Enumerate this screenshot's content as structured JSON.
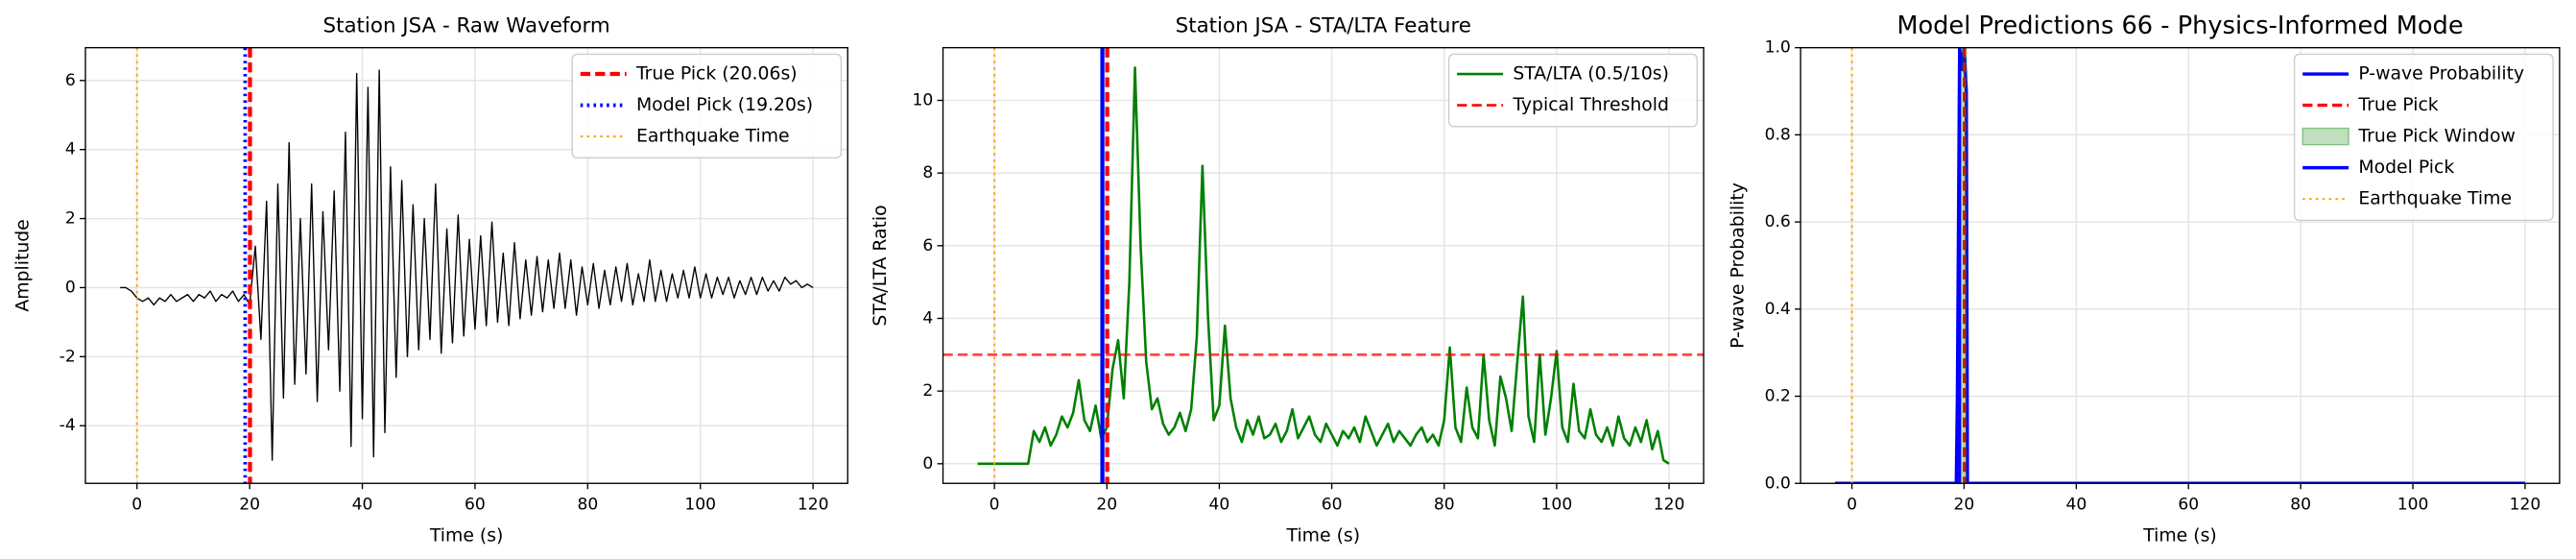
{
  "chart_data": [
    {
      "type": "line",
      "title": "Station JSA - Raw Waveform",
      "xlabel": "Time (s)",
      "ylabel": "Amplitude",
      "xlim": [
        -9.15,
        126.15
      ],
      "ylim": [
        -5.67,
        6.95
      ],
      "xticks": [
        0,
        20,
        40,
        60,
        80,
        100,
        120
      ],
      "yticks": [
        -4,
        -2,
        0,
        2,
        4,
        6
      ],
      "grid": true,
      "legend": "upper right",
      "x": [
        -3,
        -2,
        -1,
        0,
        1,
        2,
        3,
        4,
        5,
        6,
        7,
        8,
        9,
        10,
        11,
        12,
        13,
        14,
        15,
        16,
        17,
        18,
        19,
        20,
        21,
        22,
        23,
        24,
        25,
        26,
        27,
        28,
        29,
        30,
        31,
        32,
        33,
        34,
        35,
        36,
        37,
        38,
        39,
        40,
        41,
        42,
        43,
        44,
        45,
        46,
        47,
        48,
        49,
        50,
        51,
        52,
        53,
        54,
        55,
        56,
        57,
        58,
        59,
        60,
        61,
        62,
        63,
        64,
        65,
        66,
        67,
        68,
        69,
        70,
        71,
        72,
        73,
        74,
        75,
        76,
        77,
        78,
        79,
        80,
        81,
        82,
        83,
        84,
        85,
        86,
        87,
        88,
        89,
        90,
        91,
        92,
        93,
        94,
        95,
        96,
        97,
        98,
        99,
        100,
        101,
        102,
        103,
        104,
        105,
        106,
        107,
        108,
        109,
        110,
        111,
        112,
        113,
        114,
        115,
        116,
        117,
        118,
        119,
        120
      ],
      "layers": [
        {
          "kind": "line",
          "color": "#000000",
          "linewidth": 0.8,
          "dash": "solid",
          "values": [
            0,
            0,
            -0.1,
            -0.3,
            -0.4,
            -0.3,
            -0.5,
            -0.3,
            -0.4,
            -0.2,
            -0.4,
            -0.3,
            -0.2,
            -0.4,
            -0.2,
            -0.3,
            -0.1,
            -0.4,
            -0.2,
            -0.3,
            -0.1,
            -0.4,
            -0.2,
            -0.5,
            1.2,
            -1.5,
            2.5,
            -5.0,
            3.0,
            -3.2,
            4.2,
            -2.8,
            2.0,
            -2.5,
            3.0,
            -3.3,
            2.2,
            -1.8,
            2.8,
            -3.0,
            4.5,
            -4.6,
            6.2,
            -3.8,
            5.8,
            -4.9,
            6.3,
            -4.2,
            3.5,
            -2.6,
            3.1,
            -2.0,
            2.4,
            -1.8,
            2.0,
            -1.5,
            3.0,
            -1.9,
            1.7,
            -1.6,
            2.1,
            -1.4,
            1.4,
            -1.2,
            1.5,
            -1.1,
            1.9,
            -1.0,
            1.0,
            -1.1,
            1.3,
            -0.9,
            0.8,
            -0.8,
            0.9,
            -0.7,
            0.8,
            -0.6,
            1.0,
            -0.6,
            0.8,
            -0.8,
            0.6,
            -0.5,
            0.7,
            -0.6,
            0.5,
            -0.5,
            0.6,
            -0.4,
            0.7,
            -0.5,
            0.4,
            -0.4,
            0.8,
            -0.4,
            0.5,
            -0.4,
            0.4,
            -0.3,
            0.5,
            -0.3,
            0.6,
            -0.3,
            0.4,
            -0.3,
            0.3,
            -0.2,
            0.3,
            -0.3,
            0.2,
            -0.2,
            0.3,
            -0.2,
            0.3,
            -0.1,
            0.2,
            -0.1,
            0.3,
            0.1,
            0.2,
            0.0,
            0.1,
            0.0
          ]
        },
        {
          "kind": "vline",
          "name": "True Pick (20.06s)",
          "color": "#ff0000",
          "linewidth": 2.5,
          "dash": "dashed",
          "x": 20.06
        },
        {
          "kind": "vline",
          "name": "Model Pick (19.20s)",
          "color": "#0000ff",
          "linewidth": 2.2,
          "dash": "dotted",
          "x": 19.2
        },
        {
          "kind": "vline",
          "name": "Earthquake Time",
          "color": "#ffa500",
          "linewidth": 1.2,
          "dash": "dotted",
          "x": 0
        }
      ]
    },
    {
      "type": "line",
      "title": "Station JSA - STA/LTA Feature",
      "xlabel": "Time (s)",
      "ylabel": "STA/LTA Ratio",
      "xlim": [
        -9.15,
        126.15
      ],
      "ylim": [
        -0.54,
        11.45
      ],
      "xticks": [
        0,
        20,
        40,
        60,
        80,
        100,
        120
      ],
      "yticks": [
        0,
        2,
        4,
        6,
        8,
        10
      ],
      "grid": true,
      "legend": "upper right",
      "x": [
        -3,
        -2,
        -1,
        0,
        1,
        2,
        3,
        4,
        5,
        6,
        7,
        8,
        9,
        10,
        11,
        12,
        13,
        14,
        15,
        16,
        17,
        18,
        19,
        20,
        21,
        22,
        23,
        24,
        25,
        26,
        27,
        28,
        29,
        30,
        31,
        32,
        33,
        34,
        35,
        36,
        37,
        38,
        39,
        40,
        41,
        42,
        43,
        44,
        45,
        46,
        47,
        48,
        49,
        50,
        51,
        52,
        53,
        54,
        55,
        56,
        57,
        58,
        59,
        60,
        61,
        62,
        63,
        64,
        65,
        66,
        67,
        68,
        69,
        70,
        71,
        72,
        73,
        74,
        75,
        76,
        77,
        78,
        79,
        80,
        81,
        82,
        83,
        84,
        85,
        86,
        87,
        88,
        89,
        90,
        91,
        92,
        93,
        94,
        95,
        96,
        97,
        98,
        99,
        100,
        101,
        102,
        103,
        104,
        105,
        106,
        107,
        108,
        109,
        110,
        111,
        112,
        113,
        114,
        115,
        116,
        117,
        118,
        119,
        120
      ],
      "layers": [
        {
          "kind": "line",
          "name": "STA/LTA (0.5/10s)",
          "color": "#008000",
          "linewidth": 1.5,
          "dash": "solid",
          "values": [
            0,
            0,
            0,
            0,
            0,
            0,
            0,
            0,
            0,
            0,
            0.9,
            0.6,
            1.0,
            0.5,
            0.8,
            1.3,
            1.0,
            1.4,
            2.3,
            1.2,
            0.9,
            1.6,
            0.7,
            1.0,
            2.6,
            3.4,
            1.8,
            5.0,
            10.9,
            6.0,
            2.8,
            1.5,
            1.8,
            1.1,
            0.8,
            1.0,
            1.4,
            0.9,
            1.5,
            3.5,
            8.2,
            4.0,
            1.2,
            1.6,
            3.8,
            1.8,
            1.0,
            0.6,
            1.2,
            0.8,
            1.3,
            0.7,
            0.8,
            1.1,
            0.6,
            0.9,
            1.5,
            0.7,
            1.0,
            1.3,
            0.8,
            0.6,
            1.1,
            0.8,
            0.5,
            0.9,
            0.7,
            1.0,
            0.6,
            1.3,
            0.9,
            0.5,
            0.8,
            1.1,
            0.6,
            0.9,
            0.7,
            0.5,
            0.8,
            1.0,
            0.6,
            0.8,
            0.5,
            1.2,
            3.2,
            1.0,
            0.6,
            2.1,
            1.0,
            0.7,
            3.0,
            1.2,
            0.5,
            2.4,
            1.8,
            0.9,
            2.8,
            4.6,
            1.3,
            0.6,
            3.0,
            0.8,
            1.8,
            3.1,
            1.0,
            0.6,
            2.2,
            0.9,
            0.7,
            1.5,
            0.8,
            0.6,
            1.0,
            0.5,
            1.3,
            0.7,
            0.5,
            1.0,
            0.6,
            1.2,
            0.4,
            0.9,
            0.1,
            0.0
          ]
        },
        {
          "kind": "hline",
          "name": "Typical Threshold",
          "color": "#ff0000",
          "linewidth": 1.5,
          "dash": "dashed",
          "y": 3
        },
        {
          "kind": "vline",
          "color": "#0000ff",
          "linewidth": 2.5,
          "dash": "solid",
          "x": 19.2
        },
        {
          "kind": "vline",
          "color": "#ff0000",
          "linewidth": 2.5,
          "dash": "dashed",
          "x": 20.06
        },
        {
          "kind": "vline",
          "color": "#ffa500",
          "linewidth": 1.2,
          "dash": "dotted",
          "x": 0
        }
      ]
    },
    {
      "type": "line",
      "title": "Model Predictions 66 - Physics-Informed Mode",
      "xlabel": "Time (s)",
      "ylabel": "P-wave Probability",
      "xlim": [
        -9.15,
        126.15
      ],
      "ylim": [
        0,
        1
      ],
      "xticks": [
        0,
        20,
        40,
        60,
        80,
        100,
        120
      ],
      "yticks": [
        {
          "value": 0,
          "label": "0.0"
        },
        {
          "value": 0.2,
          "label": "0.2"
        },
        {
          "value": 0.4,
          "label": "0.4"
        },
        {
          "value": 0.6,
          "label": "0.6"
        },
        {
          "value": 0.8,
          "label": "0.8"
        },
        {
          "value": 1,
          "label": "1.0"
        }
      ],
      "grid": true,
      "legend": "upper right",
      "x": [
        -3,
        18.6,
        18.8,
        19.0,
        19.2,
        19.6,
        20.0,
        20.4,
        20.6,
        120
      ],
      "layers": [
        {
          "kind": "line",
          "name": "P-wave Probability",
          "color": "#0000ff",
          "linewidth": 2,
          "dash": "solid",
          "values": [
            0,
            0,
            0.2,
            0.6,
            1.0,
            0.95,
            1.0,
            0.9,
            0,
            0
          ]
        },
        {
          "kind": "vline",
          "name": "True Pick",
          "color": "#ff0000",
          "linewidth": 2,
          "dash": "dashed",
          "x": 20.06
        },
        {
          "kind": "span",
          "name": "True Pick Window",
          "color": "#008000",
          "x": [
            19.56,
            20.56
          ]
        },
        {
          "kind": "vline",
          "name": "Model Pick",
          "color": "#0000ff",
          "linewidth": 2,
          "dash": "solid",
          "x": 19.2
        },
        {
          "kind": "vline",
          "name": "Earthquake Time",
          "color": "#ffa500",
          "linewidth": 1.2,
          "dash": "dotted",
          "x": 0
        }
      ]
    }
  ]
}
